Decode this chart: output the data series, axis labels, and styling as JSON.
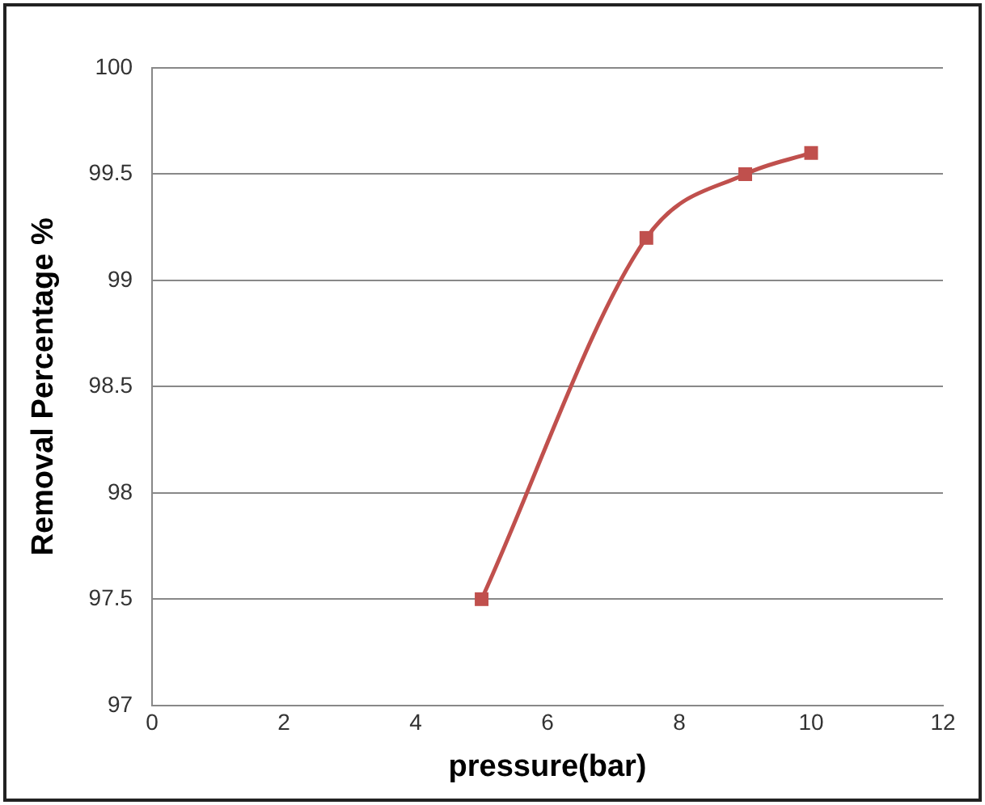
{
  "chart_data": {
    "type": "line",
    "xlabel": "pressure(bar)",
    "ylabel": "Removal Percentage %",
    "x": [
      5,
      7.5,
      9,
      10
    ],
    "series": [
      {
        "color": "#c0504d",
        "values": [
          97.5,
          99.2,
          99.5,
          99.6
        ]
      }
    ],
    "xlim": [
      0,
      12
    ],
    "xticks": [
      0,
      2,
      4,
      6,
      8,
      10,
      12
    ],
    "ylim": [
      97,
      100
    ],
    "yticks": [
      97,
      97.5,
      98,
      98.5,
      99,
      99.5,
      100
    ],
    "grid": "y",
    "legend": false,
    "marker": "square",
    "line_style": "solid"
  }
}
